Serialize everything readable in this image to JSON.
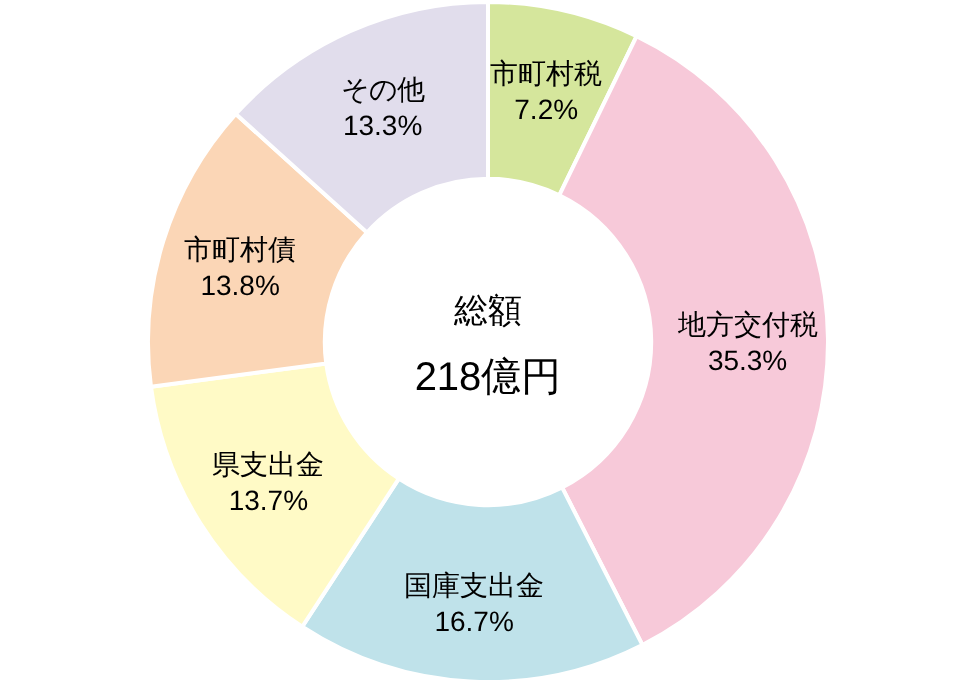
{
  "chart_data": {
    "type": "donut",
    "categories": [
      "市町村税",
      "地方交付税",
      "国庫支出金",
      "県支出金",
      "市町村債",
      "その他"
    ],
    "values": [
      7.2,
      35.3,
      16.7,
      13.7,
      13.8,
      13.3
    ],
    "colors": [
      "#d5e69c",
      "#f7c9d9",
      "#bfe2ea",
      "#fffac6",
      "#fbd6b6",
      "#e1ddec"
    ],
    "value_labels": [
      "7.2%",
      "35.3%",
      "16.7%",
      "13.7%",
      "13.8%",
      "13.3%"
    ],
    "annotations": [
      "総額",
      "218億円"
    ]
  }
}
